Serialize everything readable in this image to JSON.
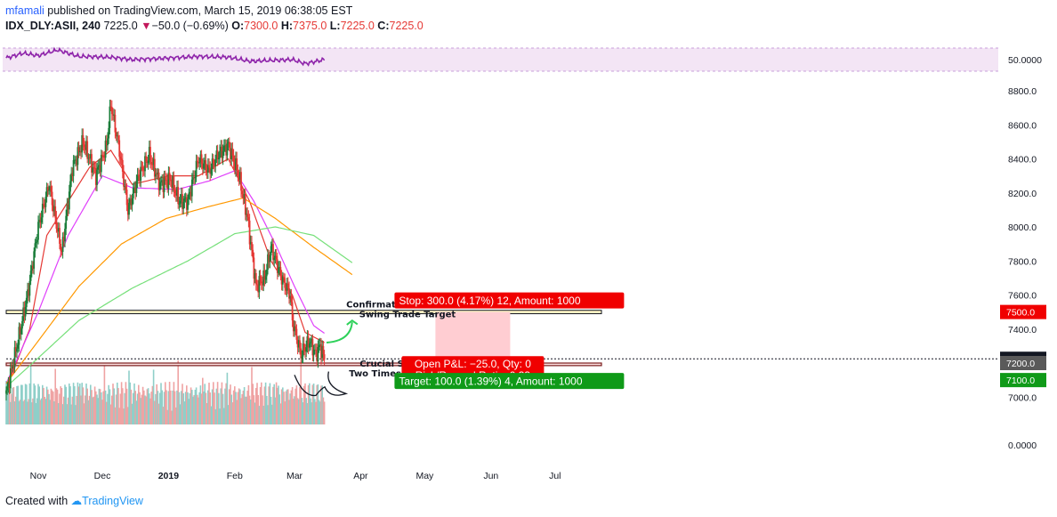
{
  "header": {
    "author": "mfamali",
    "published": "published on TradingView.com, March 15, 2019 06:38:05 EST",
    "symbol": "IDX_DLY:ASII, 240",
    "last": "7225.0",
    "change": "−50.0 (−0.69%)",
    "o_label": "O:",
    "o": "7300.0",
    "h_label": "H:",
    "h": "7375.0",
    "l_label": "L:",
    "l": "7225.0",
    "c_label": "C:",
    "c": "7225.0"
  },
  "footer": {
    "created_with": "Created with",
    "brand": "TradingView"
  },
  "colors": {
    "up": "#1b7d3a",
    "down": "#e53935",
    "ma_fast": "#e53935",
    "ma_mid": "#e040fb",
    "ma_slow": "#ff9800",
    "ma_long": "#76e07a",
    "rsi": "#8e24aa",
    "rsi_band": "#f3e5f5",
    "vol_up": "#8fcfc9",
    "vol_down": "#efa3a3",
    "stop_zone": "#ffcdd2",
    "stop_box": "#f00000",
    "target_box": "#0f9a18",
    "pnl_box": "#f00000"
  },
  "chart_data": {
    "type": "candlestick",
    "x_axis": {
      "labels": [
        "Nov",
        "Dec",
        "2019",
        "Feb",
        "Mar",
        "Apr",
        "May",
        "Jun",
        "Jul"
      ]
    },
    "y_axis": {
      "labels": [
        "8800.0",
        "8600.0",
        "8400.0",
        "8200.0",
        "8000.0",
        "7800.0",
        "7600.0",
        "7400.0",
        "7200.0",
        "7000.0"
      ],
      "ylim": [
        6980,
        8860
      ]
    },
    "indicator_axis": {
      "rsi_label": "50.0000",
      "volume_label": "0.0000"
    },
    "price_anchors": [
      [
        "2018-10-17",
        7020
      ],
      [
        "2018-10-22",
        7300
      ],
      [
        "2018-10-27",
        7600
      ],
      [
        "2018-11-01",
        8000
      ],
      [
        "2018-11-06",
        8250
      ],
      [
        "2018-11-12",
        7850
      ],
      [
        "2018-11-17",
        8350
      ],
      [
        "2018-11-22",
        8500
      ],
      [
        "2018-11-28",
        8300
      ],
      [
        "2018-12-03",
        8480
      ],
      [
        "2018-12-05",
        8720
      ],
      [
        "2018-12-09",
        8450
      ],
      [
        "2018-12-13",
        8100
      ],
      [
        "2018-12-18",
        8300
      ],
      [
        "2018-12-23",
        8420
      ],
      [
        "2018-12-28",
        8250
      ],
      [
        "2019-01-02",
        8280
      ],
      [
        "2019-01-06",
        8150
      ],
      [
        "2019-01-10",
        8150
      ],
      [
        "2019-01-15",
        8400
      ],
      [
        "2019-01-20",
        8330
      ],
      [
        "2019-01-24",
        8420
      ],
      [
        "2019-01-29",
        8480
      ],
      [
        "2019-02-03",
        8300
      ],
      [
        "2019-02-07",
        8050
      ],
      [
        "2019-02-11",
        7650
      ],
      [
        "2019-02-15",
        7700
      ],
      [
        "2019-02-18",
        7880
      ],
      [
        "2019-02-23",
        7700
      ],
      [
        "2019-02-27",
        7600
      ],
      [
        "2019-02-28",
        7450
      ],
      [
        "2019-03-04",
        7250
      ],
      [
        "2019-03-08",
        7330
      ],
      [
        "2019-03-11",
        7250
      ],
      [
        "2019-03-13",
        7300
      ],
      [
        "2019-03-15",
        7225
      ]
    ],
    "ma_fast_anchors": [
      [
        "2018-10-17",
        7050
      ],
      [
        "2018-10-28",
        7400
      ],
      [
        "2018-11-05",
        7950
      ],
      [
        "2018-11-15",
        8150
      ],
      [
        "2018-11-25",
        8350
      ],
      [
        "2018-12-05",
        8450
      ],
      [
        "2018-12-15",
        8250
      ],
      [
        "2019-01-01",
        8300
      ],
      [
        "2019-01-15",
        8300
      ],
      [
        "2019-01-29",
        8400
      ],
      [
        "2019-02-08",
        8150
      ],
      [
        "2019-02-18",
        7800
      ],
      [
        "2019-02-28",
        7600
      ],
      [
        "2019-03-06",
        7380
      ],
      [
        "2019-03-15",
        7320
      ]
    ],
    "ma_mid_anchors": [
      [
        "2018-10-17",
        7080
      ],
      [
        "2018-11-01",
        7500
      ],
      [
        "2018-11-15",
        7950
      ],
      [
        "2018-12-01",
        8300
      ],
      [
        "2018-12-15",
        8230
      ],
      [
        "2019-01-05",
        8220
      ],
      [
        "2019-01-20",
        8270
      ],
      [
        "2019-02-01",
        8330
      ],
      [
        "2019-02-10",
        8150
      ],
      [
        "2019-02-20",
        7900
      ],
      [
        "2019-03-01",
        7650
      ],
      [
        "2019-03-10",
        7420
      ],
      [
        "2019-03-15",
        7375
      ]
    ],
    "ma_slow_anchors": [
      [
        "2018-10-17",
        7080
      ],
      [
        "2018-11-01",
        7330
      ],
      [
        "2018-11-20",
        7650
      ],
      [
        "2018-12-10",
        7900
      ],
      [
        "2018-12-31",
        8050
      ],
      [
        "2019-01-20",
        8120
      ],
      [
        "2019-02-05",
        8170
      ],
      [
        "2019-02-20",
        8050
      ],
      [
        "2019-03-10",
        7880
      ],
      [
        "2019-03-28",
        7720
      ]
    ],
    "ma_long_anchors": [
      [
        "2018-10-17",
        7060
      ],
      [
        "2018-11-01",
        7230
      ],
      [
        "2018-11-20",
        7450
      ],
      [
        "2018-12-15",
        7640
      ],
      [
        "2019-01-10",
        7800
      ],
      [
        "2019-02-01",
        7960
      ],
      [
        "2019-02-20",
        8000
      ],
      [
        "2019-03-10",
        7950
      ],
      [
        "2019-03-28",
        7790
      ]
    ],
    "rsi_anchors": [
      [
        "2018-10-17",
        52
      ],
      [
        "2018-10-25",
        58
      ],
      [
        "2018-11-01",
        55
      ],
      [
        "2018-11-10",
        62
      ],
      [
        "2018-11-20",
        54
      ],
      [
        "2018-12-05",
        53
      ],
      [
        "2018-12-15",
        50
      ],
      [
        "2019-01-01",
        52
      ],
      [
        "2019-01-15",
        54
      ],
      [
        "2019-01-29",
        53
      ],
      [
        "2019-02-08",
        48
      ],
      [
        "2019-02-18",
        49
      ],
      [
        "2019-02-28",
        50
      ],
      [
        "2019-03-06",
        45
      ],
      [
        "2019-03-15",
        50
      ]
    ],
    "levels": {
      "resistance": {
        "low": 7490,
        "high": 7510
      },
      "support": {
        "low": 7185,
        "high": 7200
      },
      "current": 7225
    },
    "position": {
      "stop_price": 7500,
      "entry_price": 7200,
      "target_price": 7100,
      "start_date": "2019-05-06",
      "end_date": "2019-06-10"
    },
    "annotations": {
      "resistance_1": "Confirmation Resistance",
      "resistance_2": "Swing Trade Target",
      "support_1": "Crucial Support",
      "support_2": "Two Times Rejected"
    },
    "labels": {
      "stop": "Stop: 300.0 (4.17%) 12, Amount: 1000",
      "pnl": "Open P&L: −25.0, Qty: 0",
      "rr": "Risk/Reward Ratio: 0.33",
      "target": "Target: 100.0 (1.39%) 4, Amount: 1000",
      "price_stop": "7500.0",
      "price_current": "7225.0",
      "price_entry": "7200.0",
      "price_target": "7100.0"
    }
  }
}
